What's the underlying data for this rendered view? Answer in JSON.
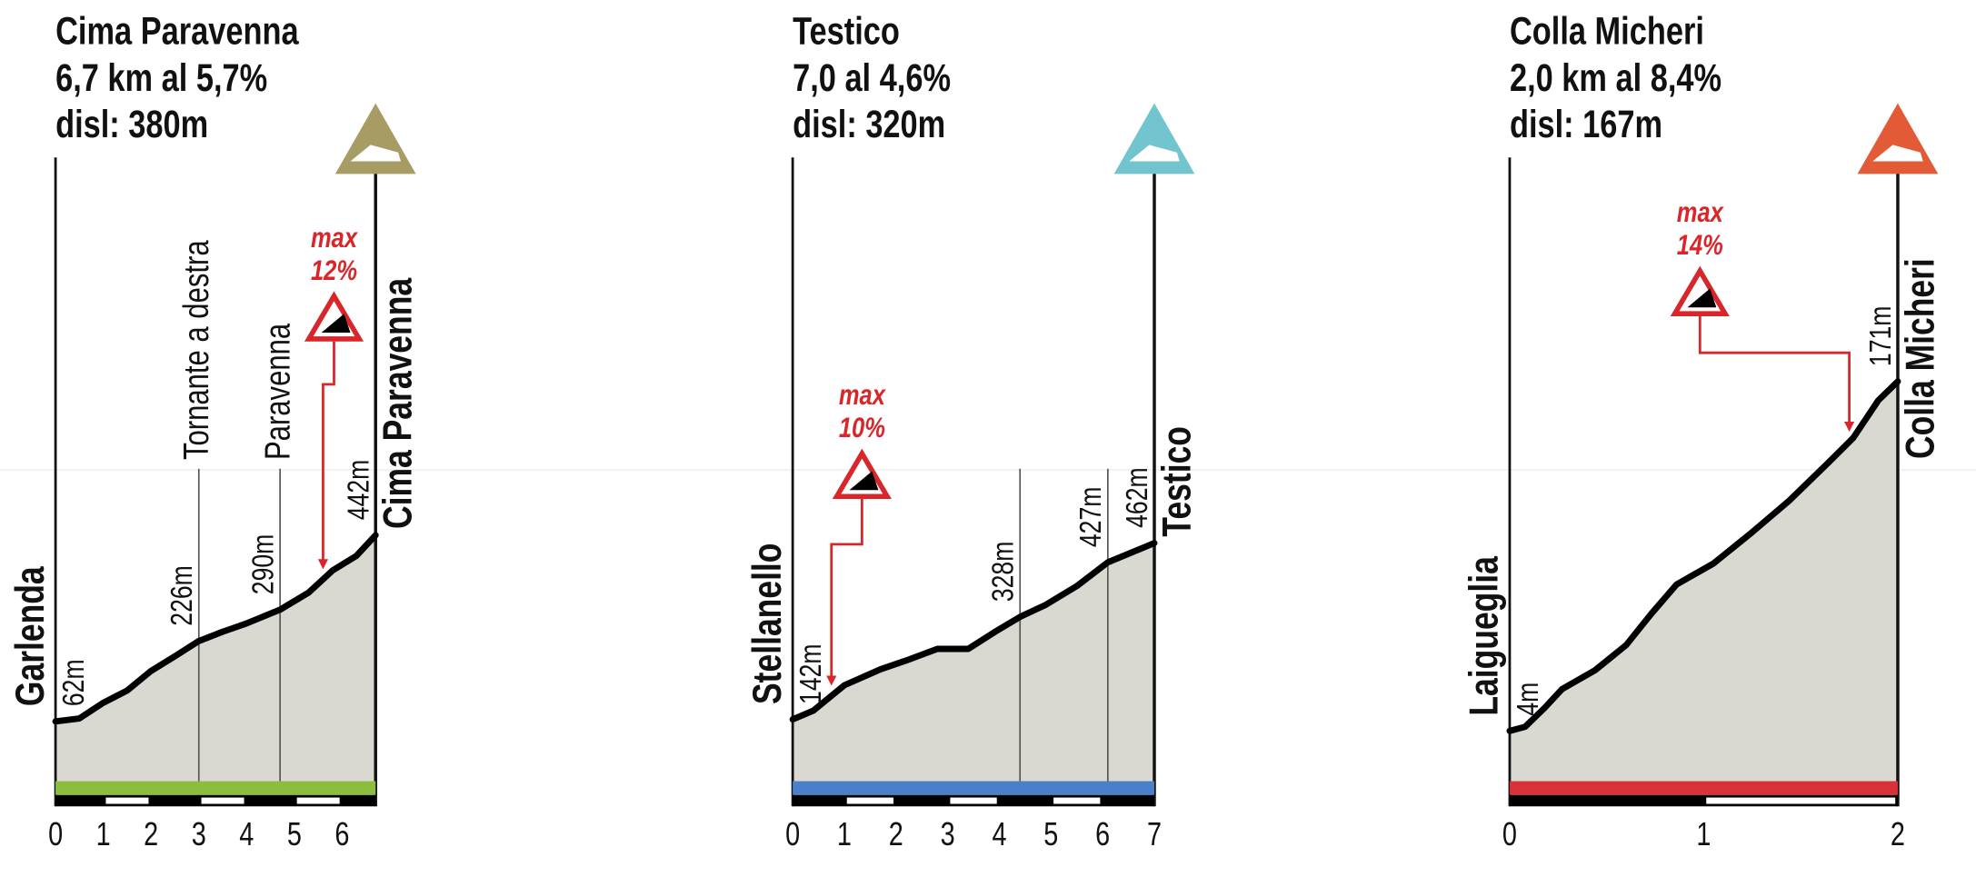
{
  "chart_data": [
    {
      "type": "area",
      "title": "Cima Paravenna",
      "subtitle": [
        "6,7 km al 5,7%",
        "disl: 380m"
      ],
      "start_label": "Garlenda",
      "end_label": "Cima Paravenna",
      "x": [
        0,
        0.5,
        1,
        1.5,
        2,
        2.5,
        3,
        3.5,
        4,
        4.7,
        5.3,
        5.8,
        6.3,
        6.7
      ],
      "values": [
        62,
        68,
        100,
        125,
        165,
        195,
        226,
        245,
        262,
        290,
        325,
        370,
        400,
        442
      ],
      "value_labels": [
        "62m",
        null,
        null,
        null,
        null,
        null,
        "226m",
        null,
        null,
        "290m",
        null,
        null,
        null,
        "442m"
      ],
      "waypoints": [
        {
          "x": 3,
          "label": "Tornante a destra"
        },
        {
          "x": 4.7,
          "label": "Paravenna"
        }
      ],
      "max_grade": {
        "text": "max",
        "label": "12%",
        "x": 5.6
      },
      "xlim": [
        0,
        6.7
      ],
      "xticks": [
        0,
        1,
        2,
        3,
        4,
        5,
        6
      ],
      "ylim": [
        -60,
        1200
      ],
      "color": "#8dbd3e",
      "icon_color": "#a89c65"
    },
    {
      "type": "area",
      "title": "Testico",
      "subtitle": [
        "7,0 al 4,6%",
        "disl: 320m"
      ],
      "start_label": "Stellanello",
      "end_label": "Testico",
      "x": [
        0,
        0.4,
        1,
        1.7,
        2.2,
        2.8,
        3.4,
        3.9,
        4.4,
        4.9,
        5.5,
        6.1,
        7
      ],
      "values": [
        142,
        158,
        204,
        233,
        249,
        270,
        270,
        300,
        328,
        350,
        384,
        427,
        462
      ],
      "value_labels": [
        "142m",
        null,
        null,
        null,
        null,
        null,
        null,
        null,
        "328m",
        null,
        null,
        "427m",
        "462m"
      ],
      "waypoints": [
        {
          "x": 4.4
        },
        {
          "x": 6.1
        }
      ],
      "max_grade": {
        "text": "max",
        "label": "10%",
        "x": 0.75
      },
      "xlim": [
        0,
        7
      ],
      "xticks": [
        0,
        1,
        2,
        3,
        4,
        5,
        6,
        7
      ],
      "ylim": [
        30,
        1150
      ],
      "color": "#4b7fca",
      "icon_color": "#72c4cf"
    },
    {
      "type": "area",
      "title": "Colla Micheri",
      "subtitle": [
        "2,0 km al 8,4%",
        "disl: 167m"
      ],
      "start_label": "Laigueglia",
      "end_label": "Colla Micheri",
      "x": [
        0,
        0.08,
        0.18,
        0.27,
        0.44,
        0.6,
        0.73,
        0.86,
        1.05,
        1.25,
        1.44,
        1.64,
        1.77,
        1.9,
        2
      ],
      "values": [
        4,
        6,
        15,
        24,
        33,
        45,
        60,
        74,
        84,
        99,
        114,
        132,
        144,
        162,
        171
      ],
      "value_labels": [
        "4m",
        null,
        null,
        null,
        null,
        null,
        null,
        null,
        null,
        null,
        null,
        null,
        null,
        null,
        "171m"
      ],
      "waypoints": [],
      "max_grade": {
        "text": "max",
        "label": "14%",
        "x": 1.75
      },
      "xlim": [
        0,
        2
      ],
      "xticks": [
        0,
        1,
        2
      ],
      "ylim": [
        -20,
        275
      ],
      "color": "#d8313a",
      "icon_color": "#e35a36"
    }
  ]
}
